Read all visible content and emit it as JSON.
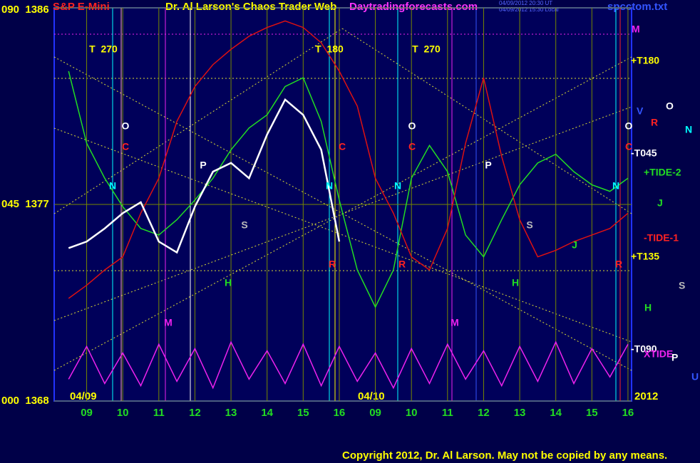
{
  "chart_data": {
    "type": "line",
    "title": "S&P E-Mini",
    "subtitle": "Dr. Al Larson's Chaos Trader Web",
    "website": "Daytradingforecasts.com",
    "timestamps": [
      "04/09/2012 20:30 UT",
      "04/09/2012 15:30 Local"
    ],
    "file": "spcctom.txt",
    "copyright": "Copyright 2012, Dr. Al Larson. May not be copied by any means.",
    "date_labels": [
      "04/09",
      "04/10"
    ],
    "year_label": "2012",
    "xlim": [
      0.1,
      16.1
    ],
    "xticks": [
      {
        "value": 1,
        "label": "09"
      },
      {
        "value": 2,
        "label": "10"
      },
      {
        "value": 3,
        "label": "11"
      },
      {
        "value": 4,
        "label": "12"
      },
      {
        "value": 5,
        "label": "13"
      },
      {
        "value": 6,
        "label": "14"
      },
      {
        "value": 7,
        "label": "15"
      },
      {
        "value": 8,
        "label": "16"
      },
      {
        "value": 9,
        "label": "09"
      },
      {
        "value": 10,
        "label": "10"
      },
      {
        "value": 11,
        "label": "11"
      },
      {
        "value": 12,
        "label": "12"
      },
      {
        "value": 13,
        "label": "13"
      },
      {
        "value": 14,
        "label": "14"
      },
      {
        "value": 15,
        "label": "15"
      },
      {
        "value": 16,
        "label": "16"
      }
    ],
    "ylim": [
      1368,
      1386
    ],
    "yticks": [
      {
        "value": 1368,
        "label": "000  1368"
      },
      {
        "value": 1377,
        "label": "045  1377"
      },
      {
        "value": 1386,
        "label": "090  1386"
      }
    ],
    "grid": true,
    "x": [
      0.5,
      1,
      1.5,
      2,
      2.5,
      3,
      3.5,
      4,
      4.5,
      5,
      5.5,
      6,
      6.5,
      7,
      7.5,
      8,
      8.5,
      9,
      9.5,
      10,
      10.5,
      11,
      11.5,
      12,
      12.5,
      13,
      13.5,
      14,
      14.5,
      15,
      15.5,
      16
    ],
    "price": {
      "color": "#ffffff",
      "values": [
        1375.0,
        1375.3,
        1375.9,
        1376.6,
        1377.1,
        1375.3,
        1374.8,
        1376.9,
        1378.5,
        1378.9,
        1378.2,
        1380.2,
        1381.8,
        1381.1,
        1379.5,
        1375.3,
        null,
        null,
        null,
        null,
        null,
        null,
        null,
        null,
        null,
        null,
        null,
        null,
        null,
        null,
        null,
        null
      ]
    },
    "series": [
      {
        "name": "+TIDE-2",
        "color": "#22dd22",
        "values": [
          1383.1,
          1379.8,
          1378.2,
          1376.9,
          1375.9,
          1375.6,
          1376.3,
          1377.2,
          1378.2,
          1379.5,
          1380.5,
          1381.1,
          1382.4,
          1382.8,
          1380.8,
          1377.2,
          1374.0,
          1372.3,
          1374.0,
          1378.2,
          1379.7,
          1378.5,
          1375.6,
          1374.6,
          1376.3,
          1377.9,
          1378.9,
          1379.3,
          1378.5,
          1377.9,
          1377.6,
          1378.2
        ]
      },
      {
        "name": "-TIDE-1",
        "color": "#dd1111",
        "values": [
          1372.7,
          1373.3,
          1374.0,
          1374.6,
          1376.6,
          1378.2,
          1380.8,
          1382.4,
          1383.4,
          1384.1,
          1384.7,
          1385.1,
          1385.4,
          1385.1,
          1384.4,
          1383.1,
          1381.5,
          1378.2,
          1376.6,
          1374.6,
          1374.0,
          1375.9,
          1379.8,
          1382.8,
          1379.2,
          1376.3,
          1374.6,
          1374.9,
          1375.3,
          1375.6,
          1375.9,
          1376.6
        ]
      },
      {
        "name": "XTIDE",
        "color": "#ee22ee",
        "values": [
          1369.0,
          1370.5,
          1368.8,
          1370.2,
          1368.7,
          1370.6,
          1368.9,
          1370.4,
          1368.6,
          1370.7,
          1369.0,
          1370.3,
          1368.8,
          1370.6,
          1368.7,
          1370.5,
          1368.9,
          1370.2,
          1368.6,
          1370.4,
          1368.8,
          1370.6,
          1369.0,
          1370.3,
          1368.7,
          1370.5,
          1368.9,
          1370.7,
          1368.8,
          1370.4,
          1369.1,
          1370.6
        ]
      }
    ],
    "annotations": [
      {
        "text": "T  270",
        "color": "#ffff00"
      },
      {
        "text": "T  180",
        "color": "#ffff00"
      },
      {
        "text": "T  270",
        "color": "#ffff00"
      },
      {
        "text": "O",
        "color": "#ffffff"
      },
      {
        "text": "O",
        "color": "#ffffff"
      },
      {
        "text": "O",
        "color": "#ffffff"
      },
      {
        "text": "C",
        "color": "#ff2222"
      },
      {
        "text": "C",
        "color": "#ff2222"
      },
      {
        "text": "C",
        "color": "#ff2222"
      },
      {
        "text": "C",
        "color": "#ff2222"
      },
      {
        "text": "N",
        "color": "#00ffff"
      },
      {
        "text": "N",
        "color": "#00ffff"
      },
      {
        "text": "N",
        "color": "#00ffff"
      },
      {
        "text": "N",
        "color": "#00ffff"
      },
      {
        "text": "P",
        "color": "#ffffff"
      },
      {
        "text": "P",
        "color": "#ffffff"
      },
      {
        "text": "S",
        "color": "#bbbbbb"
      },
      {
        "text": "S",
        "color": "#bbbbbb"
      },
      {
        "text": "H",
        "color": "#22dd22"
      },
      {
        "text": "H",
        "color": "#22dd22"
      },
      {
        "text": "M",
        "color": "#ee22ee"
      },
      {
        "text": "M",
        "color": "#ee22ee"
      },
      {
        "text": "R",
        "color": "#ff2222"
      },
      {
        "text": "R",
        "color": "#ff2222"
      },
      {
        "text": "R",
        "color": "#ff2222"
      },
      {
        "text": "J",
        "color": "#22dd22"
      }
    ],
    "right_labels": [
      {
        "text": "M",
        "color": "#ee22ee"
      },
      {
        "text": "+T180",
        "color": "#ffff00"
      },
      {
        "text": "V",
        "color": "#3355ff"
      },
      {
        "text": "O",
        "color": "#ffffff"
      },
      {
        "text": "R",
        "color": "#ff2222"
      },
      {
        "text": "N",
        "color": "#00ffff"
      },
      {
        "text": "-T045",
        "color": "#ffffff"
      },
      {
        "text": "+TIDE-2",
        "color": "#22dd22"
      },
      {
        "text": "J",
        "color": "#22dd22"
      },
      {
        "text": "-TIDE-1",
        "color": "#ff2222"
      },
      {
        "text": "+T135",
        "color": "#ffff00"
      },
      {
        "text": "S",
        "color": "#bbbbbb"
      },
      {
        "text": "H",
        "color": "#22dd22"
      },
      {
        "text": "-T090",
        "color": "#ffffff"
      },
      {
        "text": "XTIDE",
        "color": "#ee22ee"
      },
      {
        "text": "P",
        "color": "#ffffff"
      },
      {
        "text": "U",
        "color": "#3355ff"
      }
    ]
  }
}
